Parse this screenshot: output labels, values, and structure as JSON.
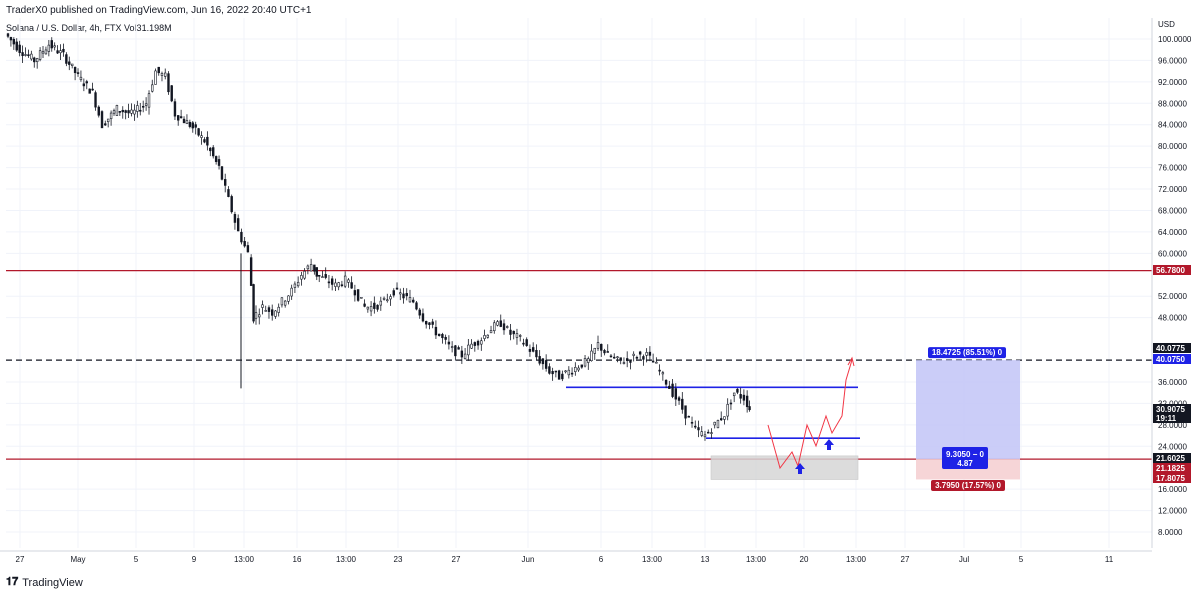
{
  "header": {
    "text": "TraderX0 published on TradingView.com, Jun 16, 2022 20:40 UTC+1"
  },
  "symbol": {
    "text": "Solana / U.S. Dollar, 4h, FTX  Vol31.198M"
  },
  "footer": {
    "brand": "TradingView"
  },
  "colors": {
    "up": "#131722",
    "down": "#131722",
    "resistance": "#b2182b",
    "support_box": "#1e22e6",
    "target_box": "#c5c8f7",
    "stop_box": "#f6d3d5",
    "path": "#f23645"
  },
  "chart_data": {
    "type": "candlestick",
    "currency": "USD",
    "y_range": [
      4,
      102
    ],
    "y_ticks": [
      "100.0000",
      "96.0000",
      "92.0000",
      "88.0000",
      "84.0000",
      "80.0000",
      "76.0000",
      "72.0000",
      "68.0000",
      "64.0000",
      "60.0000",
      "52.0000",
      "48.0000",
      "36.0000",
      "32.0000",
      "28.0000",
      "24.0000",
      "16.0000",
      "12.0000",
      "8.0000"
    ],
    "x_ticks": [
      "27",
      "May",
      "5",
      "9",
      "13:00",
      "16",
      "13:00",
      "23",
      "27",
      "Jun",
      "6",
      "13:00",
      "13",
      "13:00",
      "20",
      "13:00",
      "27",
      "Jul",
      "5",
      "11"
    ],
    "price_path": [
      [
        0,
        101
      ],
      [
        3,
        98
      ],
      [
        6,
        96
      ],
      [
        9,
        99
      ],
      [
        12,
        97
      ],
      [
        15,
        93
      ],
      [
        18,
        90
      ],
      [
        20,
        84
      ],
      [
        23,
        87
      ],
      [
        26,
        86
      ],
      [
        29,
        88
      ],
      [
        31,
        94
      ],
      [
        33,
        93
      ],
      [
        35,
        86
      ],
      [
        38,
        84
      ],
      [
        41,
        81
      ],
      [
        44,
        76
      ],
      [
        46,
        70
      ],
      [
        48,
        64
      ],
      [
        50,
        60
      ],
      [
        51,
        48
      ],
      [
        53,
        50
      ],
      [
        55,
        49
      ],
      [
        57,
        51
      ],
      [
        59,
        53
      ],
      [
        61,
        56
      ],
      [
        63,
        58
      ],
      [
        64,
        56
      ],
      [
        66,
        55
      ],
      [
        68,
        54
      ],
      [
        70,
        55
      ],
      [
        72,
        53
      ],
      [
        74,
        50
      ],
      [
        76,
        50
      ],
      [
        78,
        51
      ],
      [
        80,
        53
      ],
      [
        82,
        52
      ],
      [
        84,
        51
      ],
      [
        86,
        48
      ],
      [
        88,
        46
      ],
      [
        90,
        44
      ],
      [
        92,
        42
      ],
      [
        94,
        41
      ],
      [
        96,
        43
      ],
      [
        98,
        44
      ],
      [
        100,
        46
      ],
      [
        102,
        47
      ],
      [
        104,
        45
      ],
      [
        106,
        44
      ],
      [
        108,
        42
      ],
      [
        110,
        40
      ],
      [
        112,
        38
      ],
      [
        114,
        37
      ],
      [
        116,
        38
      ],
      [
        118,
        39
      ],
      [
        120,
        40
      ],
      [
        122,
        43
      ],
      [
        124,
        41
      ],
      [
        126,
        40
      ],
      [
        128,
        40
      ],
      [
        130,
        41
      ],
      [
        132,
        41
      ],
      [
        134,
        39
      ],
      [
        136,
        36
      ],
      [
        138,
        33
      ],
      [
        140,
        30
      ],
      [
        142,
        27
      ],
      [
        144,
        26
      ],
      [
        146,
        28
      ],
      [
        148,
        30
      ],
      [
        150,
        34
      ],
      [
        152,
        33
      ],
      [
        153,
        31
      ]
    ],
    "levels": [
      {
        "label": "56.7800",
        "price": 56.78,
        "style": "resistance"
      },
      {
        "label": "21.6025",
        "price": 21.6025,
        "style": "resistance"
      },
      {
        "label": "40.0775",
        "price": 40.0775,
        "style": "dashed"
      }
    ],
    "price_tags": [
      {
        "label": "56.7800",
        "color": "#b2182b"
      },
      {
        "label": "40.0775",
        "color": "#131722"
      },
      {
        "label": "40.0750",
        "color": "#1e22e6"
      },
      {
        "label": "30.9075",
        "color": "#131722"
      },
      {
        "label": "19:11",
        "color": "#131722"
      },
      {
        "label": "21.6025",
        "color": "#131722"
      },
      {
        "label": "21.1825",
        "color": "#b2182b"
      },
      {
        "label": "17.8075",
        "color": "#b2182b"
      }
    ],
    "position": {
      "target_label": "18.4725 (85.51%) 0",
      "mid_label_1": "9.3050 − 0",
      "mid_label_2": "4.87",
      "stop_label": "3.7950 (17.57%) 0",
      "entry": 21.6025,
      "target": 40.075,
      "stop": 17.8075
    },
    "support_lines": [
      35,
      25.5
    ],
    "title": "",
    "xlabel": "",
    "ylabel": ""
  }
}
